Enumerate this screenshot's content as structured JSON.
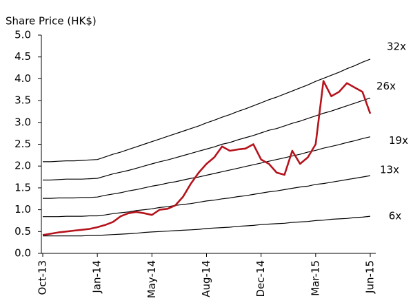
{
  "chart_data": {
    "type": "line",
    "y_axis_label": "Share Price (HK$)",
    "categories": [
      "Oct-13",
      null,
      null,
      null,
      null,
      null,
      null,
      "Jan-14",
      null,
      null,
      null,
      null,
      null,
      null,
      "May-14",
      null,
      null,
      null,
      null,
      null,
      null,
      "Aug-14",
      null,
      null,
      null,
      null,
      null,
      null,
      "Dec-14",
      null,
      null,
      null,
      null,
      null,
      null,
      "Mar-15",
      null,
      null,
      null,
      null,
      null,
      null,
      "Jun-15"
    ],
    "ylim": [
      0,
      5
    ],
    "yticks": [
      {
        "value": 0,
        "label": "0.0"
      },
      {
        "value": 0.5,
        "label": "0.5"
      },
      {
        "value": 1,
        "label": "1.0"
      },
      {
        "value": 1.5,
        "label": "1.5"
      },
      {
        "value": 2,
        "label": "2.0"
      },
      {
        "value": 2.5,
        "label": "2.5"
      },
      {
        "value": 3,
        "label": "3.0"
      },
      {
        "value": 3.5,
        "label": "3.5"
      },
      {
        "value": 4,
        "label": "4.0"
      },
      {
        "value": 4.5,
        "label": "4.5"
      },
      {
        "value": 5,
        "label": "5.0"
      }
    ],
    "grid": false,
    "series": [
      {
        "name": "32x",
        "color": "#000000",
        "values": [
          2.1,
          2.1,
          2.11,
          2.12,
          2.12,
          2.13,
          2.14,
          2.15,
          2.21,
          2.27,
          2.32,
          2.38,
          2.44,
          2.5,
          2.56,
          2.62,
          2.68,
          2.74,
          2.8,
          2.86,
          2.92,
          2.99,
          3.05,
          3.12,
          3.18,
          3.25,
          3.31,
          3.38,
          3.45,
          3.52,
          3.58,
          3.65,
          3.72,
          3.79,
          3.86,
          3.94,
          4.01,
          4.08,
          4.15,
          4.23,
          4.3,
          4.38,
          4.45
        ]
      },
      {
        "name": "26x",
        "color": "#000000",
        "values": [
          1.68,
          1.68,
          1.69,
          1.7,
          1.7,
          1.7,
          1.71,
          1.72,
          1.77,
          1.82,
          1.86,
          1.9,
          1.95,
          2.0,
          2.05,
          2.1,
          2.14,
          2.19,
          2.24,
          2.29,
          2.34,
          2.39,
          2.44,
          2.5,
          2.54,
          2.6,
          2.65,
          2.7,
          2.76,
          2.82,
          2.86,
          2.92,
          2.98,
          3.03,
          3.09,
          3.15,
          3.21,
          3.26,
          3.32,
          3.38,
          3.44,
          3.5,
          3.56
        ]
      },
      {
        "name": "19x",
        "color": "#000000",
        "values": [
          1.26,
          1.26,
          1.27,
          1.27,
          1.27,
          1.28,
          1.28,
          1.29,
          1.33,
          1.36,
          1.39,
          1.43,
          1.46,
          1.5,
          1.54,
          1.57,
          1.61,
          1.64,
          1.68,
          1.72,
          1.75,
          1.79,
          1.83,
          1.87,
          1.91,
          1.95,
          1.99,
          2.03,
          2.07,
          2.11,
          2.15,
          2.19,
          2.23,
          2.27,
          2.32,
          2.36,
          2.41,
          2.45,
          2.49,
          2.54,
          2.58,
          2.63,
          2.67
        ]
      },
      {
        "name": "13x",
        "color": "#000000",
        "values": [
          0.84,
          0.84,
          0.84,
          0.85,
          0.85,
          0.85,
          0.86,
          0.86,
          0.88,
          0.91,
          0.93,
          0.95,
          0.98,
          1.0,
          1.02,
          1.05,
          1.07,
          1.1,
          1.12,
          1.14,
          1.17,
          1.2,
          1.22,
          1.25,
          1.27,
          1.3,
          1.32,
          1.35,
          1.38,
          1.41,
          1.43,
          1.46,
          1.49,
          1.52,
          1.54,
          1.58,
          1.6,
          1.63,
          1.66,
          1.69,
          1.72,
          1.75,
          1.78
        ]
      },
      {
        "name": "6x",
        "color": "#000000",
        "values": [
          0.4,
          0.4,
          0.4,
          0.4,
          0.4,
          0.4,
          0.41,
          0.41,
          0.42,
          0.43,
          0.44,
          0.45,
          0.46,
          0.48,
          0.49,
          0.5,
          0.51,
          0.52,
          0.53,
          0.54,
          0.55,
          0.57,
          0.58,
          0.59,
          0.6,
          0.62,
          0.63,
          0.64,
          0.66,
          0.67,
          0.68,
          0.69,
          0.71,
          0.72,
          0.73,
          0.75,
          0.76,
          0.78,
          0.79,
          0.8,
          0.82,
          0.83,
          0.85
        ]
      },
      {
        "color": "#b5121b",
        "values": [
          0.42,
          0.45,
          0.48,
          0.5,
          0.52,
          0.54,
          0.56,
          0.6,
          0.65,
          0.72,
          0.85,
          0.92,
          0.95,
          0.92,
          0.88,
          1.0,
          1.02,
          1.1,
          1.3,
          1.6,
          1.85,
          2.05,
          2.2,
          2.45,
          2.35,
          2.38,
          2.4,
          2.5,
          2.15,
          2.05,
          1.85,
          1.8,
          2.35,
          2.05,
          2.2,
          2.5,
          3.95,
          3.6,
          3.7,
          3.9,
          3.8,
          3.7,
          3.2
        ]
      }
    ]
  }
}
